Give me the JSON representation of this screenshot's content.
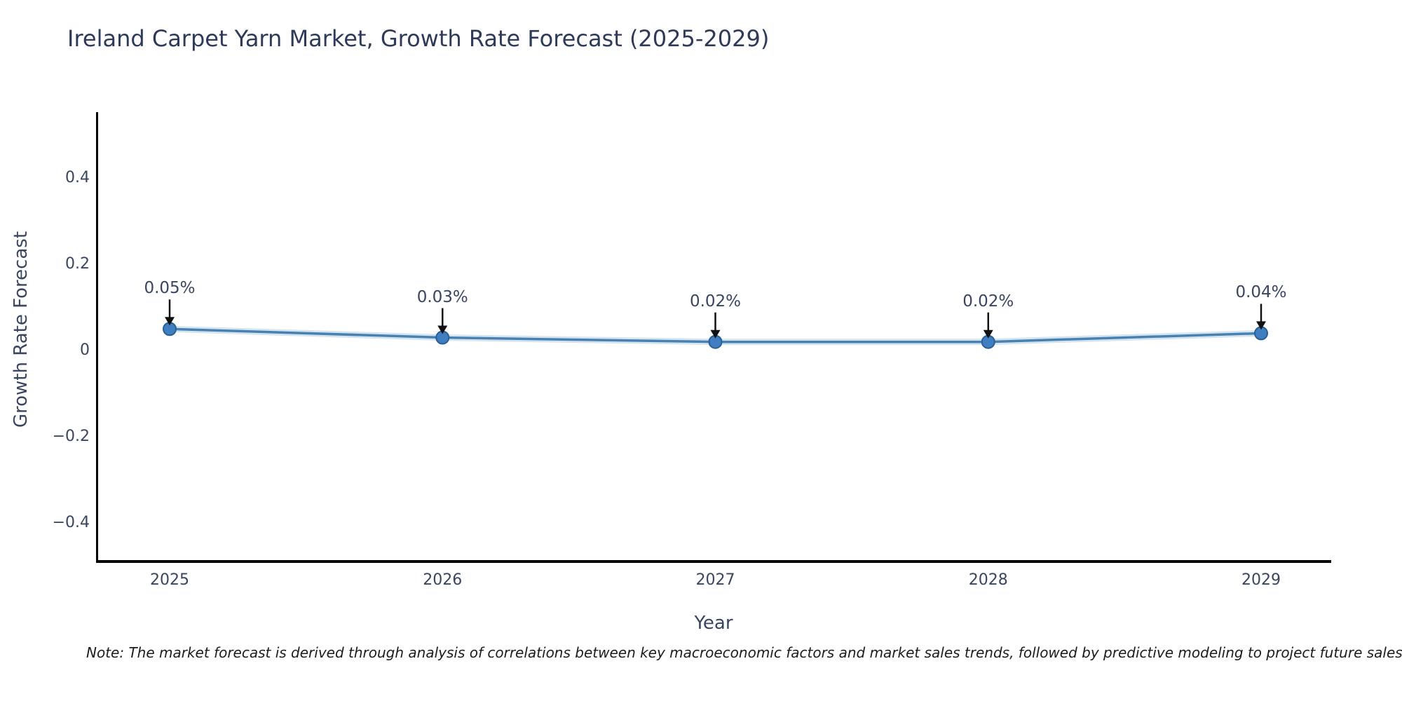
{
  "chart_data": {
    "type": "line",
    "title": "Ireland Carpet Yarn Market, Growth Rate Forecast (2025-2029)",
    "xlabel": "Year",
    "ylabel": "Growth Rate Forecast",
    "categories": [
      "2025",
      "2026",
      "2027",
      "2028",
      "2029"
    ],
    "series": [
      {
        "name": "Growth Rate Forecast",
        "values": [
          0.05,
          0.03,
          0.02,
          0.02,
          0.04
        ],
        "point_labels": [
          "0.05%",
          "0.03%",
          "0.02%",
          "0.02%",
          "0.04%"
        ]
      }
    ],
    "yticks": [
      0.4,
      0.2,
      0,
      -0.2,
      -0.4
    ],
    "ytick_labels": [
      "0.4",
      "0.2",
      "0",
      "−0.2",
      "−0.4"
    ],
    "ylim": [
      -0.49,
      0.55
    ],
    "grid": false,
    "legend": null,
    "annotation_style": "value label above point with downward black arrow",
    "colors": {
      "line": "#4682b4",
      "line_halo": "rgba(70,130,180,0.22)",
      "marker_fill": "#3f7fc1",
      "marker_edge": "#2a5f94",
      "axis_spine": "#000000",
      "tick_text": "#3a4560",
      "title_text": "#2e3a58",
      "arrow": "#111111",
      "background": "#ffffff"
    }
  },
  "note": {
    "text": "Note: The market forecast is derived through analysis of correlations between key macroeconomic factors and market sales trends, followed by predictive modeling to project future sales."
  }
}
